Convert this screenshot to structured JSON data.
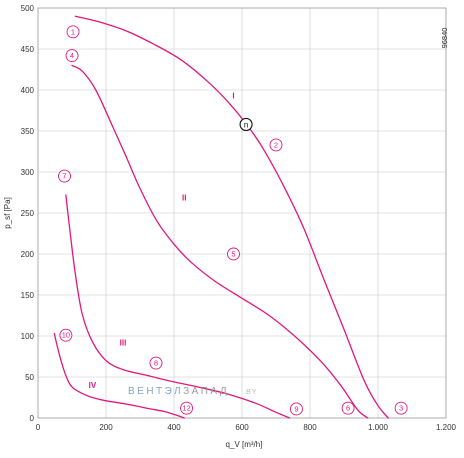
{
  "chart_data": {
    "type": "line",
    "title": "",
    "xlabel": "q_V [m³/h]",
    "ylabel": "p_sf [Pa]",
    "xlim": [
      0,
      1200
    ],
    "ylim": [
      0,
      500
    ],
    "x_ticks": [
      "0",
      "200",
      "400",
      "600",
      "800",
      "1.000",
      "1.200"
    ],
    "x_tick_values": [
      0,
      200,
      400,
      600,
      800,
      1000,
      1200
    ],
    "y_ticks": [
      "0",
      "50",
      "100",
      "150",
      "200",
      "250",
      "300",
      "350",
      "400",
      "450",
      "500"
    ],
    "y_tick_values": [
      0,
      50,
      100,
      150,
      200,
      250,
      300,
      350,
      400,
      450,
      500
    ],
    "grid": true,
    "diagram_id": "96840",
    "watermark": {
      "part1": "ВЕНТЭЛ",
      "part2": "ЗАПАД",
      "part3": ".BY"
    },
    "series": [
      {
        "name": "I",
        "color": "#e0187e",
        "x": [
          110,
          180,
          260,
          340,
          420,
          500,
          560,
          610,
          660,
          720,
          780,
          840,
          900,
          960,
          1000,
          1030
        ],
        "y": [
          490,
          483,
          472,
          456,
          437,
          410,
          385,
          360,
          330,
          285,
          233,
          170,
          108,
          45,
          15,
          0
        ]
      },
      {
        "name": "II",
        "color": "#e0187e",
        "x": [
          100,
          130,
          170,
          220,
          260,
          300,
          350,
          400,
          450,
          520,
          600,
          680,
          760,
          830,
          890,
          940,
          970
        ],
        "y": [
          430,
          423,
          400,
          355,
          318,
          280,
          240,
          212,
          190,
          167,
          146,
          125,
          98,
          70,
          40,
          10,
          0
        ]
      },
      {
        "name": "III",
        "color": "#e0187e",
        "x": [
          82,
          92,
          110,
          130,
          160,
          200,
          250,
          320,
          400,
          480,
          560,
          640,
          700,
          740
        ],
        "y": [
          272,
          235,
          175,
          127,
          93,
          70,
          59,
          52,
          44,
          37,
          29,
          18,
          7,
          0
        ]
      },
      {
        "name": "IV",
        "color": "#e0187e",
        "x": [
          48,
          60,
          75,
          90,
          105,
          130,
          160,
          200,
          260,
          320,
          370,
          410,
          430
        ],
        "y": [
          103,
          82,
          60,
          44,
          36,
          30,
          25,
          21,
          17,
          12,
          8,
          3,
          0
        ]
      }
    ],
    "curve_labels": [
      {
        "text": "I",
        "x": 575,
        "y": 393
      },
      {
        "text": "II",
        "x": 430,
        "y": 269
      },
      {
        "text": "III",
        "x": 250,
        "y": 92
      },
      {
        "text": "IV",
        "x": 160,
        "y": 40
      }
    ],
    "markers": [
      {
        "text": "1",
        "x": 103,
        "y": 471
      },
      {
        "text": "2",
        "x": 700,
        "y": 333
      },
      {
        "text": "3",
        "x": 1068,
        "y": 12
      },
      {
        "text": "4",
        "x": 100,
        "y": 442
      },
      {
        "text": "5",
        "x": 575,
        "y": 200
      },
      {
        "text": "6",
        "x": 912,
        "y": 12
      },
      {
        "text": "7",
        "x": 78,
        "y": 295
      },
      {
        "text": "8",
        "x": 347,
        "y": 67
      },
      {
        "text": "9",
        "x": 760,
        "y": 11
      },
      {
        "text": "10",
        "x": 82,
        "y": 101
      },
      {
        "text": "12",
        "x": 437,
        "y": 12
      }
    ],
    "operating_point": {
      "text": "Ⓝ",
      "x": 612,
      "y": 358
    }
  }
}
